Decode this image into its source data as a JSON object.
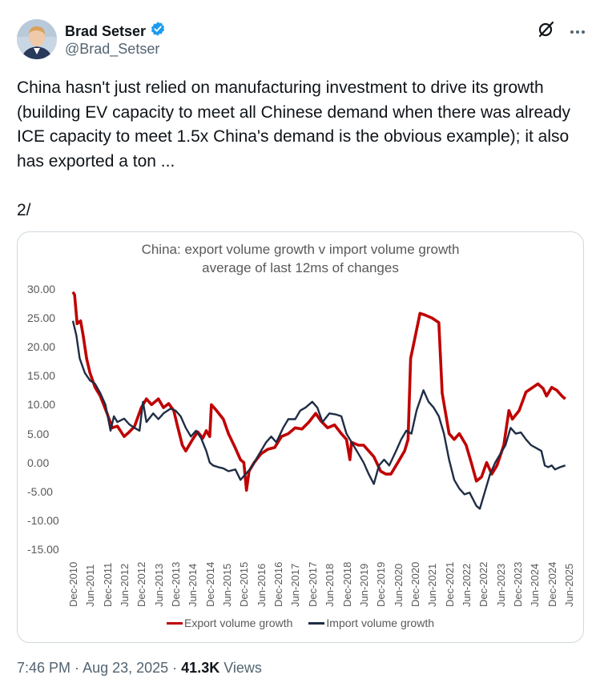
{
  "author": {
    "name": "Brad Setser",
    "handle": "@Brad_Setser",
    "verified": true
  },
  "icons": {
    "verified": "verified-badge-icon",
    "grok": "grok-icon",
    "more": "more-options-icon"
  },
  "tweet": {
    "text": "China hasn't just relied on manufacturing investment to drive its growth (building EV capacity to meet all Chinese demand when there was already ICE capacity to meet 1.5x China's demand is the obvious example); it also has exported a ton ...\n\n2/"
  },
  "footer": {
    "time": "7:46 PM",
    "date": "Aug 23, 2025",
    "views": "41.3K",
    "views_label": "Views"
  },
  "colors": {
    "export": "#c00000",
    "import": "#1f2d45",
    "verified": "#1d9bf0"
  },
  "chart_data": {
    "type": "line",
    "title": "China: export volume growth v import volume growth",
    "subtitle": "average of last 12ms of changes",
    "ylim": [
      -15,
      30
    ],
    "y_ticks": [
      "30.00",
      "25.00",
      "20.00",
      "15.00",
      "10.00",
      "5.00",
      "0.00",
      "-5.00",
      "-10.00",
      "-15.00"
    ],
    "x_ticks": [
      "Dec-2010",
      "Jun-2011",
      "Dec-2011",
      "Jun-2012",
      "Dec-2012",
      "Jun-2013",
      "Dec-2013",
      "Jun-2014",
      "Dec-2014",
      "Jun-2015",
      "Dec-2015",
      "Jun-2016",
      "Dec-2016",
      "Jun-2017",
      "Dec-2017",
      "Jun-2018",
      "Dec-2018",
      "Jun-2019",
      "Dec-2019",
      "Jun-2020",
      "Dec-2020",
      "Jun-2021",
      "Dec-2021",
      "Jun-2022",
      "Dec-2022",
      "Jun-2023",
      "Dec-2023",
      "Jun-2024",
      "Dec-2024",
      "Jun-2025"
    ],
    "series": [
      {
        "name": "Export volume growth",
        "points": [
          [
            0,
            29.5
          ],
          [
            0.1,
            29
          ],
          [
            0.25,
            24
          ],
          [
            0.45,
            24.5
          ],
          [
            0.6,
            22
          ],
          [
            0.8,
            18
          ],
          [
            1,
            15.5
          ],
          [
            1.3,
            13
          ],
          [
            1.6,
            11.5
          ],
          [
            2,
            8.5
          ],
          [
            2.3,
            6
          ],
          [
            2.6,
            6.3
          ],
          [
            3,
            4.5
          ],
          [
            3.3,
            5.3
          ],
          [
            3.6,
            6.2
          ],
          [
            4,
            9.5
          ],
          [
            4.3,
            11
          ],
          [
            4.6,
            10
          ],
          [
            5,
            11
          ],
          [
            5.3,
            9.5
          ],
          [
            5.6,
            10.2
          ],
          [
            5.9,
            9
          ],
          [
            6.1,
            6.5
          ],
          [
            6.4,
            3
          ],
          [
            6.6,
            2
          ],
          [
            7,
            4
          ],
          [
            7.3,
            5.3
          ],
          [
            7.6,
            4.2
          ],
          [
            7.8,
            5.5
          ],
          [
            8,
            4.5
          ],
          [
            8.1,
            10
          ],
          [
            8.4,
            9
          ],
          [
            8.8,
            7.5
          ],
          [
            9.1,
            5
          ],
          [
            9.5,
            2.5
          ],
          [
            9.8,
            0.5
          ],
          [
            10,
            0
          ],
          [
            10.15,
            -4.8
          ],
          [
            10.3,
            -1.5
          ],
          [
            10.6,
            0
          ],
          [
            11,
            1.5
          ],
          [
            11.4,
            2.3
          ],
          [
            11.8,
            2.6
          ],
          [
            12.2,
            4.5
          ],
          [
            12.6,
            5
          ],
          [
            13,
            6
          ],
          [
            13.4,
            5.8
          ],
          [
            13.8,
            7
          ],
          [
            14.2,
            8.5
          ],
          [
            14.5,
            7.2
          ],
          [
            14.9,
            6
          ],
          [
            15.3,
            6.5
          ],
          [
            15.7,
            5
          ],
          [
            16,
            4
          ],
          [
            16.2,
            0.5
          ],
          [
            16.3,
            3.5
          ],
          [
            16.7,
            3
          ],
          [
            17,
            3
          ],
          [
            17.3,
            2
          ],
          [
            17.6,
            1
          ],
          [
            18,
            -1.5
          ],
          [
            18.3,
            -2
          ],
          [
            18.6,
            -2
          ],
          [
            19,
            0
          ],
          [
            19.4,
            2
          ],
          [
            19.6,
            4
          ],
          [
            19.75,
            18
          ],
          [
            20,
            21.5
          ],
          [
            20.3,
            25.8
          ],
          [
            20.6,
            25.5
          ],
          [
            21,
            25
          ],
          [
            21.4,
            24.2
          ],
          [
            21.6,
            12
          ],
          [
            22,
            5
          ],
          [
            22.3,
            4
          ],
          [
            22.6,
            5
          ],
          [
            23,
            3
          ],
          [
            23.3,
            0
          ],
          [
            23.6,
            -3.2
          ],
          [
            23.9,
            -2.5
          ],
          [
            24.2,
            0
          ],
          [
            24.5,
            -2
          ],
          [
            24.8,
            -0.5
          ],
          [
            25.2,
            3
          ],
          [
            25.5,
            9
          ],
          [
            25.7,
            7.5
          ],
          [
            26.1,
            9
          ],
          [
            26.5,
            12.2
          ],
          [
            26.9,
            13
          ],
          [
            27.2,
            13.6
          ],
          [
            27.5,
            12.8
          ],
          [
            27.7,
            11.5
          ],
          [
            28,
            13
          ],
          [
            28.3,
            12.5
          ],
          [
            28.6,
            11.5
          ],
          [
            28.8,
            11
          ]
        ]
      },
      {
        "name": "Import volume growth",
        "points": [
          [
            0,
            24.5
          ],
          [
            0.2,
            22
          ],
          [
            0.4,
            18
          ],
          [
            0.7,
            15.5
          ],
          [
            1,
            14.2
          ],
          [
            1.3,
            13.6
          ],
          [
            1.6,
            12
          ],
          [
            1.9,
            10
          ],
          [
            2.2,
            5.5
          ],
          [
            2.4,
            8
          ],
          [
            2.6,
            7
          ],
          [
            3,
            7.6
          ],
          [
            3.3,
            6.6
          ],
          [
            3.6,
            6
          ],
          [
            3.9,
            5.5
          ],
          [
            4.1,
            10.5
          ],
          [
            4.3,
            7
          ],
          [
            4.7,
            8.5
          ],
          [
            5,
            7.5
          ],
          [
            5.3,
            8.5
          ],
          [
            5.7,
            9.3
          ],
          [
            6,
            9
          ],
          [
            6.3,
            8
          ],
          [
            6.6,
            6
          ],
          [
            6.9,
            4.5
          ],
          [
            7.2,
            5.5
          ],
          [
            7.5,
            4.2
          ],
          [
            7.8,
            2
          ],
          [
            8,
            0
          ],
          [
            8.2,
            -0.5
          ],
          [
            8.5,
            -0.8
          ],
          [
            8.8,
            -1
          ],
          [
            9.1,
            -1.5
          ],
          [
            9.5,
            -1.2
          ],
          [
            9.8,
            -3
          ],
          [
            10.1,
            -2
          ],
          [
            10.4,
            -1
          ],
          [
            10.7,
            0.5
          ],
          [
            11,
            2
          ],
          [
            11.3,
            3.5
          ],
          [
            11.6,
            4.5
          ],
          [
            11.9,
            3.5
          ],
          [
            12.3,
            6
          ],
          [
            12.6,
            7.5
          ],
          [
            13,
            7.5
          ],
          [
            13.3,
            9
          ],
          [
            13.6,
            9.5
          ],
          [
            14,
            10.5
          ],
          [
            14.3,
            9.5
          ],
          [
            14.6,
            7
          ],
          [
            15,
            8.5
          ],
          [
            15.4,
            8.3
          ],
          [
            15.7,
            8
          ],
          [
            16,
            5
          ],
          [
            16.4,
            3
          ],
          [
            16.7,
            1.5
          ],
          [
            17,
            0
          ],
          [
            17.3,
            -2
          ],
          [
            17.6,
            -3.7
          ],
          [
            17.9,
            -0.5
          ],
          [
            18.2,
            0.5
          ],
          [
            18.5,
            -0.5
          ],
          [
            18.9,
            2
          ],
          [
            19.2,
            4
          ],
          [
            19.5,
            5.5
          ],
          [
            19.8,
            5
          ],
          [
            20.1,
            9
          ],
          [
            20.5,
            12.5
          ],
          [
            20.8,
            10.5
          ],
          [
            21.1,
            9.5
          ],
          [
            21.4,
            8
          ],
          [
            21.7,
            5
          ],
          [
            22,
            0.5
          ],
          [
            22.3,
            -3
          ],
          [
            22.6,
            -4.5
          ],
          [
            22.9,
            -5.5
          ],
          [
            23.2,
            -5.2
          ],
          [
            23.6,
            -7.5
          ],
          [
            23.8,
            -8
          ],
          [
            24.1,
            -5
          ],
          [
            24.4,
            -2
          ],
          [
            24.7,
            0
          ],
          [
            25,
            1.5
          ],
          [
            25.3,
            3
          ],
          [
            25.6,
            6
          ],
          [
            25.9,
            5
          ],
          [
            26.2,
            5.2
          ],
          [
            26.5,
            4
          ],
          [
            26.8,
            3
          ],
          [
            27.1,
            2.5
          ],
          [
            27.4,
            2
          ],
          [
            27.6,
            -0.5
          ],
          [
            27.8,
            -0.8
          ],
          [
            28,
            -0.5
          ],
          [
            28.2,
            -1.2
          ],
          [
            28.5,
            -0.8
          ],
          [
            28.8,
            -0.5
          ]
        ]
      }
    ]
  }
}
